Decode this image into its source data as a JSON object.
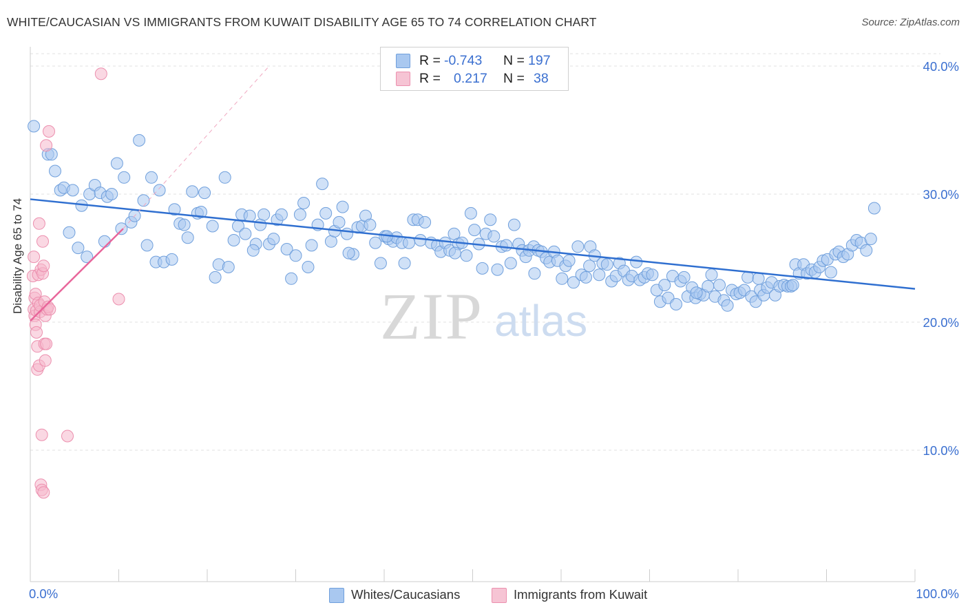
{
  "header": {
    "title": "WHITE/CAUCASIAN VS IMMIGRANTS FROM KUWAIT DISABILITY AGE 65 TO 74 CORRELATION CHART",
    "source": "Source: ZipAtlas.com"
  },
  "watermark": {
    "zip": "ZIP",
    "atlas": "atlas"
  },
  "legend_top": {
    "rows": [
      {
        "r_label": "R =",
        "r_value": "-0.743",
        "n_label": "N =",
        "n_value": "197"
      },
      {
        "r_label": "R =",
        "r_value": "0.217",
        "n_label": "N =",
        "n_value": "38"
      }
    ]
  },
  "legend_bottom": {
    "items": [
      "Whites/Caucasians",
      "Immigrants from Kuwait"
    ]
  },
  "chart_data": {
    "type": "scatter",
    "title": "WHITE/CAUCASIAN VS IMMIGRANTS FROM KUWAIT DISABILITY AGE 65 TO 74 CORRELATION CHART",
    "xlabel": "",
    "ylabel": "Disability Age 65 to 74",
    "xlim": [
      0,
      100
    ],
    "ylim": [
      0,
      41
    ],
    "x_tick_labels": [
      "0.0%",
      "100.0%"
    ],
    "y_ticks": [
      10,
      20,
      30,
      40
    ],
    "y_tick_labels": [
      "10.0%",
      "20.0%",
      "30.0%",
      "40.0%"
    ],
    "grid": true,
    "legend_position": "top-center",
    "colors": {
      "whites_fill": "#a9c8f0",
      "whites_stroke": "#6f9fdc",
      "whites_line": "#2f6fd0",
      "kuwait_fill": "#f6b8cc",
      "kuwait_stroke": "#ec8fae",
      "kuwait_line": "#e8659a",
      "tick_label": "#3a6fd0"
    },
    "series": [
      {
        "name": "Whites/Caucasians",
        "r": -0.743,
        "n": 197,
        "trend": {
          "x": [
            0,
            100
          ],
          "y": [
            29.6,
            22.6
          ]
        },
        "points": [
          [
            0.4,
            35.3
          ],
          [
            2.0,
            33.1
          ],
          [
            2.4,
            33.1
          ],
          [
            2.8,
            31.8
          ],
          [
            3.4,
            30.3
          ],
          [
            3.8,
            30.5
          ],
          [
            4.8,
            30.3
          ],
          [
            5.8,
            29.1
          ],
          [
            6.7,
            30.0
          ],
          [
            7.3,
            30.7
          ],
          [
            7.9,
            30.1
          ],
          [
            8.7,
            29.8
          ],
          [
            9.2,
            30.0
          ],
          [
            9.8,
            32.4
          ],
          [
            10.6,
            31.3
          ],
          [
            12.3,
            34.2
          ],
          [
            12.8,
            29.5
          ],
          [
            13.7,
            31.3
          ],
          [
            14.6,
            30.3
          ],
          [
            4.4,
            27.0
          ],
          [
            5.4,
            25.8
          ],
          [
            6.4,
            25.1
          ],
          [
            8.4,
            26.3
          ],
          [
            10.3,
            27.3
          ],
          [
            11.4,
            27.8
          ],
          [
            11.8,
            28.3
          ],
          [
            13.2,
            26.0
          ],
          [
            14.2,
            24.7
          ],
          [
            15.1,
            24.7
          ],
          [
            16.0,
            24.9
          ],
          [
            16.3,
            28.8
          ],
          [
            16.9,
            27.7
          ],
          [
            17.4,
            27.6
          ],
          [
            17.8,
            26.6
          ],
          [
            18.3,
            30.2
          ],
          [
            18.9,
            28.5
          ],
          [
            19.3,
            28.6
          ],
          [
            19.7,
            30.1
          ],
          [
            20.6,
            27.5
          ],
          [
            20.9,
            23.5
          ],
          [
            21.3,
            24.5
          ],
          [
            22.0,
            31.3
          ],
          [
            22.4,
            24.3
          ],
          [
            23.0,
            26.4
          ],
          [
            23.5,
            27.5
          ],
          [
            23.9,
            28.4
          ],
          [
            24.3,
            26.9
          ],
          [
            24.8,
            28.3
          ],
          [
            25.5,
            26.1
          ],
          [
            26.0,
            27.6
          ],
          [
            26.4,
            28.4
          ],
          [
            27.0,
            26.1
          ],
          [
            27.5,
            26.5
          ],
          [
            27.9,
            28.0
          ],
          [
            28.4,
            28.4
          ],
          [
            29.0,
            25.7
          ],
          [
            29.5,
            23.4
          ],
          [
            30.0,
            25.2
          ],
          [
            30.5,
            28.4
          ],
          [
            30.9,
            29.3
          ],
          [
            31.4,
            24.3
          ],
          [
            31.8,
            26.0
          ],
          [
            32.5,
            27.6
          ],
          [
            33.0,
            30.8
          ],
          [
            33.4,
            28.5
          ],
          [
            34.0,
            26.3
          ],
          [
            34.4,
            27.1
          ],
          [
            34.9,
            27.8
          ],
          [
            35.3,
            29.0
          ],
          [
            35.8,
            26.9
          ],
          [
            36.5,
            25.3
          ],
          [
            37.0,
            27.4
          ],
          [
            37.5,
            27.5
          ],
          [
            37.9,
            28.3
          ],
          [
            38.4,
            27.6
          ],
          [
            39.0,
            26.2
          ],
          [
            39.6,
            24.6
          ],
          [
            40.1,
            26.7
          ],
          [
            40.5,
            26.5
          ],
          [
            41.0,
            26.3
          ],
          [
            41.4,
            26.6
          ],
          [
            42.0,
            26.2
          ],
          [
            42.3,
            24.6
          ],
          [
            42.8,
            26.2
          ],
          [
            43.3,
            28.0
          ],
          [
            43.8,
            28.0
          ],
          [
            44.1,
            26.4
          ],
          [
            44.6,
            27.8
          ],
          [
            45.3,
            26.2
          ],
          [
            46.0,
            26.0
          ],
          [
            46.4,
            25.5
          ],
          [
            46.9,
            26.2
          ],
          [
            47.4,
            25.6
          ],
          [
            47.9,
            26.9
          ],
          [
            48.4,
            26.1
          ],
          [
            48.8,
            26.2
          ],
          [
            49.3,
            25.2
          ],
          [
            49.8,
            28.5
          ],
          [
            50.2,
            27.2
          ],
          [
            50.7,
            26.1
          ],
          [
            51.1,
            24.2
          ],
          [
            51.5,
            26.9
          ],
          [
            52.0,
            28.0
          ],
          [
            52.4,
            26.7
          ],
          [
            52.8,
            24.1
          ],
          [
            53.3,
            25.9
          ],
          [
            53.8,
            26.0
          ],
          [
            54.3,
            24.6
          ],
          [
            54.7,
            27.6
          ],
          [
            55.2,
            26.1
          ],
          [
            55.6,
            25.6
          ],
          [
            56.0,
            25.1
          ],
          [
            56.4,
            25.6
          ],
          [
            56.9,
            25.9
          ],
          [
            57.4,
            25.6
          ],
          [
            57.8,
            25.5
          ],
          [
            58.3,
            25.0
          ],
          [
            58.7,
            24.7
          ],
          [
            59.2,
            25.5
          ],
          [
            59.6,
            24.8
          ],
          [
            60.1,
            23.4
          ],
          [
            60.5,
            24.4
          ],
          [
            60.9,
            24.8
          ],
          [
            61.4,
            23.1
          ],
          [
            61.9,
            25.9
          ],
          [
            62.3,
            23.7
          ],
          [
            62.8,
            23.5
          ],
          [
            63.3,
            25.9
          ],
          [
            63.8,
            25.2
          ],
          [
            64.3,
            23.7
          ],
          [
            64.7,
            24.6
          ],
          [
            65.2,
            24.5
          ],
          [
            65.7,
            23.2
          ],
          [
            66.2,
            23.6
          ],
          [
            66.6,
            24.6
          ],
          [
            67.1,
            24.0
          ],
          [
            67.6,
            23.3
          ],
          [
            68.0,
            23.6
          ],
          [
            68.5,
            24.7
          ],
          [
            68.9,
            23.3
          ],
          [
            69.4,
            23.5
          ],
          [
            69.8,
            23.8
          ],
          [
            70.3,
            23.7
          ],
          [
            70.8,
            22.5
          ],
          [
            71.2,
            21.6
          ],
          [
            71.7,
            22.9
          ],
          [
            72.1,
            21.9
          ],
          [
            72.6,
            23.6
          ],
          [
            73.0,
            21.4
          ],
          [
            73.5,
            23.2
          ],
          [
            73.9,
            23.5
          ],
          [
            74.3,
            22.0
          ],
          [
            74.8,
            22.7
          ],
          [
            75.2,
            21.9
          ],
          [
            75.7,
            22.2
          ],
          [
            76.1,
            22.1
          ],
          [
            76.6,
            22.8
          ],
          [
            77.0,
            23.7
          ],
          [
            77.4,
            22.0
          ],
          [
            77.9,
            22.9
          ],
          [
            78.4,
            21.7
          ],
          [
            78.8,
            21.3
          ],
          [
            79.3,
            22.5
          ],
          [
            79.8,
            22.2
          ],
          [
            80.2,
            22.3
          ],
          [
            80.7,
            22.5
          ],
          [
            81.1,
            23.5
          ],
          [
            81.5,
            22.0
          ],
          [
            82.0,
            21.6
          ],
          [
            82.5,
            22.5
          ],
          [
            82.9,
            22.1
          ],
          [
            83.3,
            22.7
          ],
          [
            83.8,
            23.1
          ],
          [
            84.2,
            22.1
          ],
          [
            84.7,
            22.8
          ],
          [
            85.2,
            22.9
          ],
          [
            85.6,
            22.8
          ],
          [
            86.0,
            22.8
          ],
          [
            86.5,
            24.5
          ],
          [
            86.9,
            23.8
          ],
          [
            87.4,
            24.5
          ],
          [
            87.8,
            23.8
          ],
          [
            88.3,
            24.1
          ],
          [
            88.7,
            23.9
          ],
          [
            89.2,
            24.3
          ],
          [
            89.6,
            24.8
          ],
          [
            90.1,
            24.9
          ],
          [
            90.5,
            23.9
          ],
          [
            91.0,
            25.3
          ],
          [
            91.4,
            25.5
          ],
          [
            91.9,
            25.1
          ],
          [
            92.4,
            25.3
          ],
          [
            92.9,
            26.0
          ],
          [
            93.4,
            26.4
          ],
          [
            93.9,
            26.2
          ],
          [
            94.5,
            25.6
          ],
          [
            95.0,
            26.5
          ],
          [
            95.4,
            28.9
          ],
          [
            40.3,
            26.7
          ],
          [
            63.2,
            24.4
          ],
          [
            25.2,
            25.6
          ],
          [
            57.0,
            23.8
          ],
          [
            48.0,
            25.4
          ],
          [
            36.0,
            25.4
          ],
          [
            82.3,
            23.4
          ],
          [
            75.3,
            22.3
          ],
          [
            86.2,
            22.9
          ]
        ]
      },
      {
        "name": "Immigrants from Kuwait",
        "r": 0.217,
        "n": 38,
        "trend": {
          "x": [
            0,
            10.5
          ],
          "y": [
            20.1,
            27.3
          ],
          "dashed_to": [
            27,
            40
          ]
        },
        "points": [
          [
            0.3,
            23.6
          ],
          [
            0.4,
            25.1
          ],
          [
            0.4,
            21.0
          ],
          [
            0.5,
            20.5
          ],
          [
            0.5,
            21.9
          ],
          [
            0.6,
            22.2
          ],
          [
            0.6,
            19.8
          ],
          [
            0.7,
            19.2
          ],
          [
            0.7,
            20.9
          ],
          [
            0.8,
            16.3
          ],
          [
            0.8,
            18.1
          ],
          [
            0.9,
            21.5
          ],
          [
            0.9,
            23.7
          ],
          [
            1.0,
            27.7
          ],
          [
            1.0,
            16.6
          ],
          [
            1.1,
            20.8
          ],
          [
            1.1,
            21.3
          ],
          [
            1.2,
            24.1
          ],
          [
            1.2,
            7.3
          ],
          [
            1.3,
            6.9
          ],
          [
            1.3,
            11.2
          ],
          [
            1.4,
            26.3
          ],
          [
            1.4,
            23.8
          ],
          [
            1.5,
            24.4
          ],
          [
            1.5,
            6.7
          ],
          [
            1.6,
            21.6
          ],
          [
            1.6,
            18.3
          ],
          [
            1.7,
            17.0
          ],
          [
            1.7,
            20.5
          ],
          [
            1.8,
            33.8
          ],
          [
            1.8,
            18.3
          ],
          [
            1.9,
            21.0
          ],
          [
            2.0,
            21.2
          ],
          [
            2.1,
            34.9
          ],
          [
            2.2,
            21.0
          ],
          [
            4.2,
            11.1
          ],
          [
            8.0,
            39.4
          ],
          [
            10.0,
            21.8
          ]
        ]
      }
    ]
  }
}
